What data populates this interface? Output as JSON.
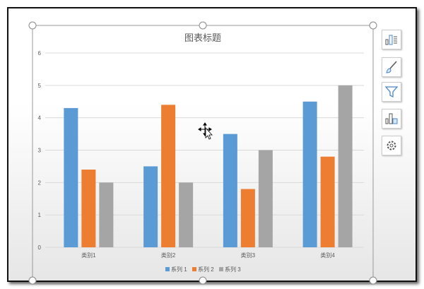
{
  "chart_data": {
    "type": "bar",
    "title": "图表标题",
    "categories": [
      "类别1",
      "类别2",
      "类别3",
      "类别4"
    ],
    "series": [
      {
        "name": "系列 1",
        "color": "#5b9bd5",
        "values": [
          4.3,
          2.5,
          3.5,
          4.5
        ]
      },
      {
        "name": "系列 2",
        "color": "#ed7d31",
        "values": [
          2.4,
          4.4,
          1.8,
          2.8
        ]
      },
      {
        "name": "系列 3",
        "color": "#a5a5a5",
        "values": [
          2.0,
          2.0,
          3.0,
          5.0
        ]
      }
    ],
    "yticks": [
      0,
      1,
      2,
      3,
      4,
      5,
      6
    ],
    "ylim": [
      0,
      6
    ],
    "xlabel": "",
    "ylabel": "",
    "grid": true,
    "legend": "bottom"
  },
  "side_buttons": [
    {
      "name": "chart-elements-button",
      "icon": "chart-elements-icon"
    },
    {
      "name": "chart-styles-button",
      "icon": "brush-icon"
    },
    {
      "name": "chart-filter-button",
      "icon": "filter-icon"
    },
    {
      "name": "chart-layout-button",
      "icon": "chart-layout-icon"
    },
    {
      "name": "chart-settings-button",
      "icon": "gear-icon"
    }
  ]
}
